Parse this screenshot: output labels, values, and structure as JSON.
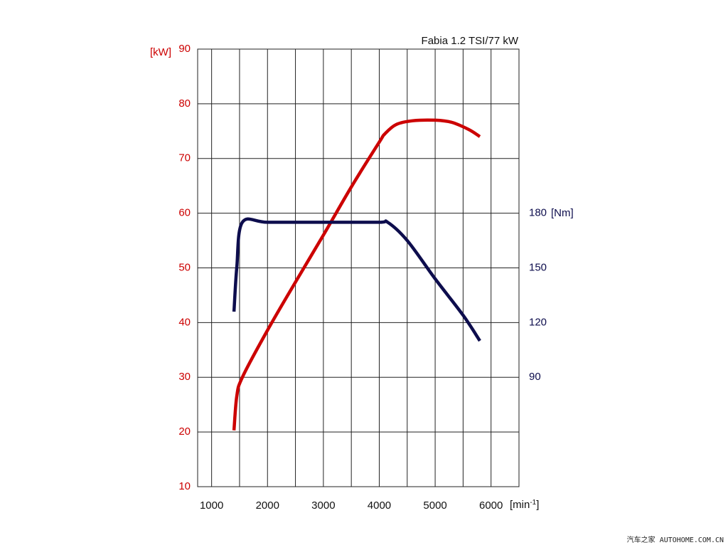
{
  "chart_data": {
    "type": "line",
    "title": "Fabia 1.2 TSI/77 kW",
    "xlabel": "[min-1]",
    "xlabel_base": "[min",
    "xlabel_sup": "-1",
    "xlabel_close": "]",
    "xlim": [
      750,
      6500
    ],
    "x_ticks": [
      1000,
      2000,
      3000,
      4000,
      5000,
      6000
    ],
    "x_tick_labels": [
      "1000",
      "2000",
      "3000",
      "4000",
      "5000",
      "6000"
    ],
    "x_grid": [
      1000,
      1500,
      2000,
      2500,
      3000,
      3500,
      4000,
      4500,
      5000,
      5500,
      6000
    ],
    "y_left": {
      "label": "[kW]",
      "ylim": [
        10,
        90
      ],
      "ticks": [
        10,
        20,
        30,
        40,
        50,
        60,
        70,
        80,
        90
      ],
      "tick_labels": [
        "10",
        "20",
        "30",
        "40",
        "50",
        "60",
        "70",
        "80",
        "90"
      ]
    },
    "y_right": {
      "label": "[Nm]",
      "ticks": [
        90,
        120,
        150,
        180
      ],
      "tick_labels": [
        "90",
        "120",
        "150",
        "180"
      ]
    },
    "grid": true,
    "colors": {
      "power": "#cc0000",
      "torque": "#0d0d4d",
      "grid": "#222222"
    },
    "series": [
      {
        "key": "power",
        "axis": "left",
        "x": [
          1400,
          1450,
          1550,
          2000,
          2500,
          3000,
          3500,
          4000,
          4100,
          4300,
          4600,
          5000,
          5300,
          5600,
          5800
        ],
        "values": [
          20.3,
          26.5,
          30,
          38.6,
          47.4,
          56,
          64.8,
          73,
          74.5,
          76.2,
          76.9,
          77,
          76.6,
          75.3,
          74
        ]
      },
      {
        "key": "torque",
        "axis": "right",
        "x": [
          1400,
          1450,
          1550,
          2000,
          3000,
          4000,
          4150,
          4500,
          5000,
          5500,
          5800
        ],
        "values": [
          126,
          150,
          175,
          175,
          175,
          175,
          175,
          165,
          144,
          124,
          110
        ]
      }
    ]
  },
  "watermark": "汽车之家 AUTOHOME.COM.CN"
}
